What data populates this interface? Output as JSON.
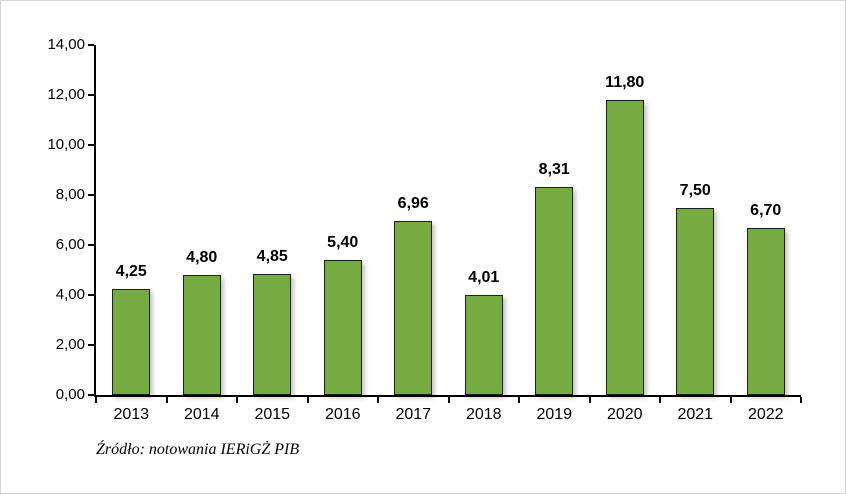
{
  "source_note": "Źródło: notowania IERiGŻ PIB",
  "colors": {
    "bar_fill": "#76ab42",
    "bar_border": "#1f1f1f",
    "axis": "#000000"
  },
  "chart_data": {
    "type": "bar",
    "categories": [
      "2013",
      "2014",
      "2015",
      "2016",
      "2017",
      "2018",
      "2019",
      "2020",
      "2021",
      "2022"
    ],
    "values": [
      4.25,
      4.8,
      4.85,
      5.4,
      6.96,
      4.01,
      8.31,
      11.8,
      7.5,
      6.7
    ],
    "value_labels": [
      "4,25",
      "4,80",
      "4,85",
      "5,40",
      "6,96",
      "4,01",
      "8,31",
      "11,80",
      "7,50",
      "6,70"
    ],
    "title": "",
    "xlabel": "",
    "ylabel": "",
    "ylim": [
      0,
      14
    ],
    "ytick_step": 2,
    "ytick_labels": [
      "0,00",
      "2,00",
      "4,00",
      "6,00",
      "8,00",
      "10,00",
      "12,00",
      "14,00"
    ],
    "grid": false,
    "legend": null,
    "bar_color": "#76ab42"
  }
}
